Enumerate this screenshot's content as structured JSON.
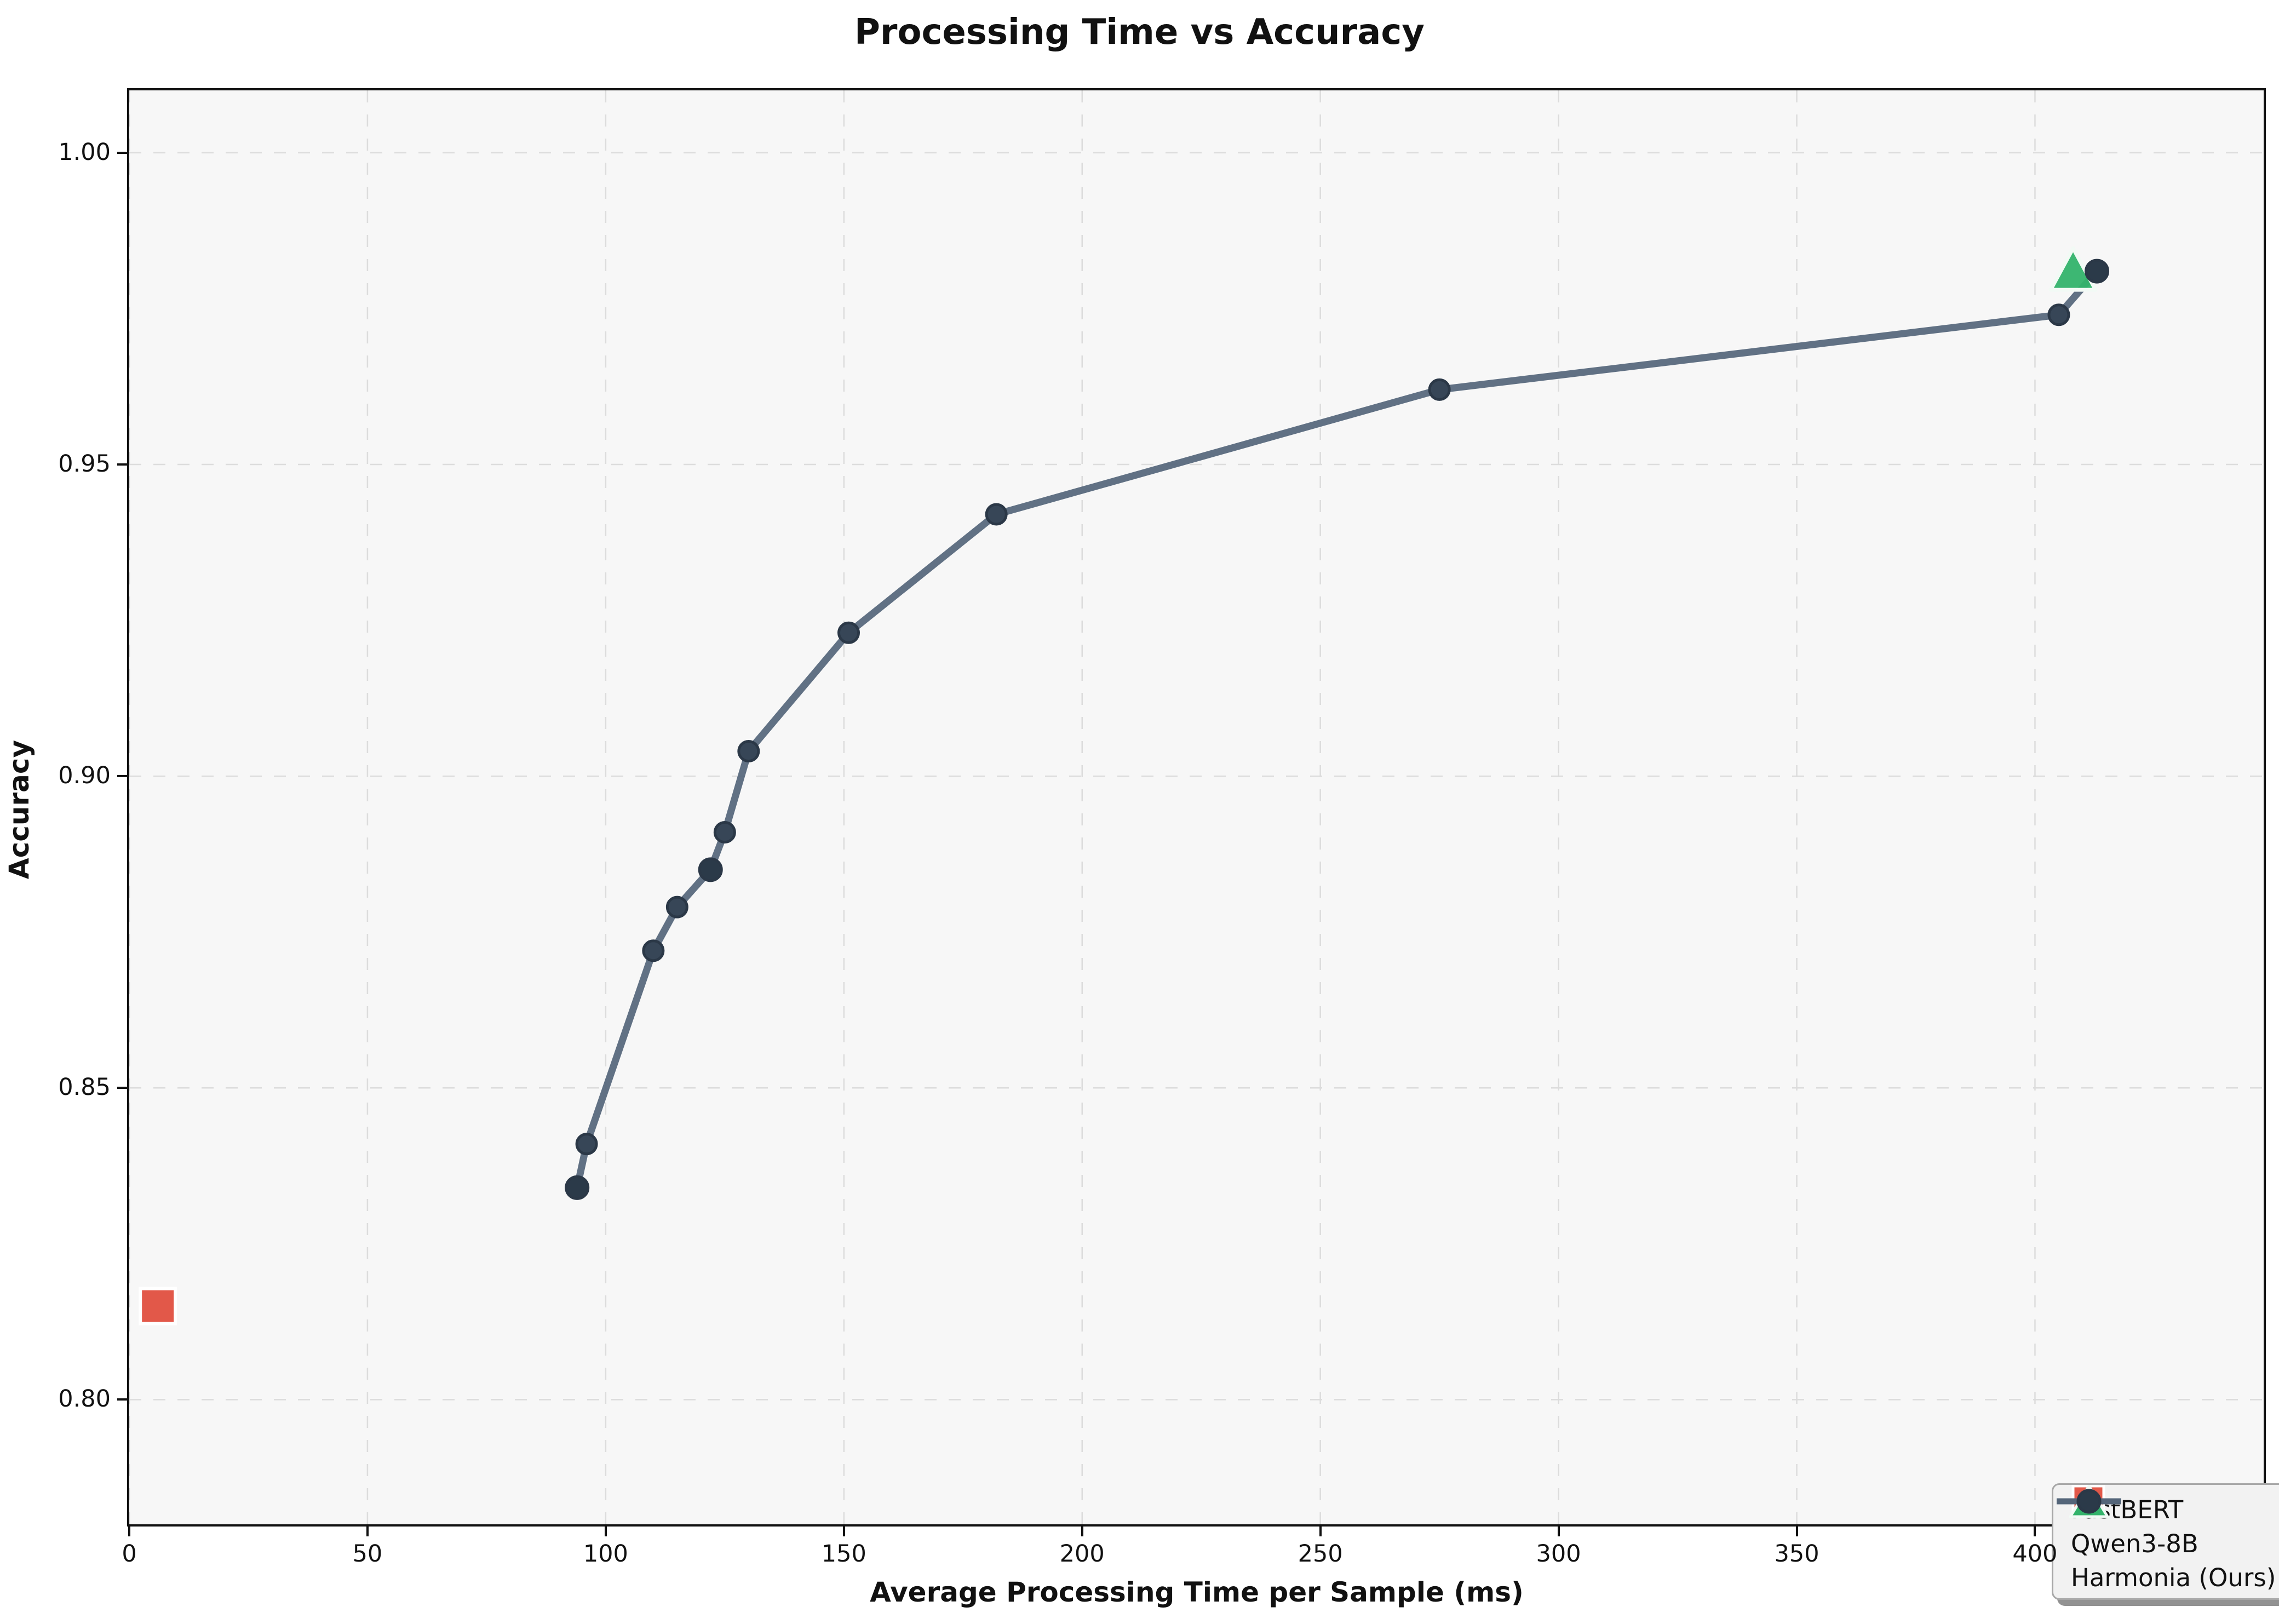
{
  "chart_data": {
    "type": "line",
    "title": "Processing Time vs Accuracy",
    "xlabel": "Average Processing Time per Sample (ms)",
    "ylabel": "Accuracy",
    "xlim": [
      0,
      448
    ],
    "ylim": [
      0.78,
      1.01
    ],
    "grid": true,
    "legend_position": "lower right",
    "xticks": [
      {
        "v": 0,
        "label": "0"
      },
      {
        "v": 50,
        "label": "50"
      },
      {
        "v": 100,
        "label": "100"
      },
      {
        "v": 150,
        "label": "150"
      },
      {
        "v": 200,
        "label": "200"
      },
      {
        "v": 250,
        "label": "250"
      },
      {
        "v": 300,
        "label": "300"
      },
      {
        "v": 350,
        "label": "350"
      },
      {
        "v": 400,
        "label": "400"
      }
    ],
    "yticks": [
      {
        "v": 0.8,
        "label": "0.80"
      },
      {
        "v": 0.85,
        "label": "0.85"
      },
      {
        "v": 0.9,
        "label": "0.90"
      },
      {
        "v": 0.95,
        "label": "0.95"
      },
      {
        "v": 1.0,
        "label": "1.00"
      }
    ],
    "series": [
      {
        "name": "FastBERT",
        "type": "scatter",
        "marker": "square",
        "color": "#e25849",
        "edge": "#ffffff",
        "points": [
          [
            6,
            0.815
          ]
        ]
      },
      {
        "name": "Qwen3-8B",
        "type": "scatter",
        "marker": "triangle",
        "color": "#33b36b",
        "edge": "#f2faf5",
        "points": [
          [
            408,
            0.981
          ]
        ]
      },
      {
        "name": "Harmonia (Ours)",
        "type": "line",
        "marker": "circle",
        "color": "#546579",
        "marker_fill": "#374657",
        "marker_edge": "#2b3847",
        "marker_solid_fill": "#2b3a49",
        "solid_markers": [
          0,
          4,
          11
        ],
        "points": [
          [
            94,
            0.834
          ],
          [
            96,
            0.841
          ],
          [
            110,
            0.872
          ],
          [
            115,
            0.879
          ],
          [
            122,
            0.885
          ],
          [
            125,
            0.891
          ],
          [
            130,
            0.904
          ],
          [
            151,
            0.923
          ],
          [
            182,
            0.942
          ],
          [
            275,
            0.962
          ],
          [
            405,
            0.974
          ],
          [
            413,
            0.981
          ]
        ]
      }
    ],
    "style": {
      "plot_bg": "#f7f7f7",
      "grid_color": "#dcdcdc",
      "spine_color": "#111111",
      "legend_face": "#f2f2f2",
      "legend_edge": "#a8a8a8"
    }
  }
}
